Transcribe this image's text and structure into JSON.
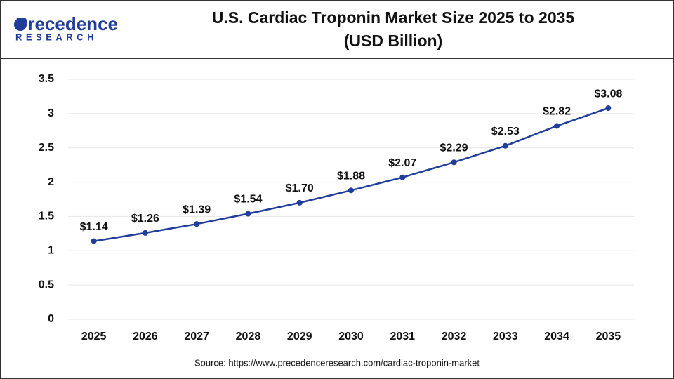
{
  "logo": {
    "name": "Precedence",
    "tagline": "RESEARCH"
  },
  "chart_data": {
    "type": "line",
    "title": "U.S. Cardiac Troponin Market Size 2025 to 2035",
    "subtitle": "(USD Billion)",
    "categories": [
      "2025",
      "2026",
      "2027",
      "2028",
      "2029",
      "2030",
      "2031",
      "2032",
      "2033",
      "2034",
      "2035"
    ],
    "series": [
      {
        "name": "U.S. Cardiac Troponin Market Size",
        "color": "#1f3d99",
        "values": [
          1.14,
          1.26,
          1.39,
          1.54,
          1.7,
          1.88,
          2.07,
          2.29,
          2.53,
          2.82,
          3.08
        ],
        "value_labels": [
          "$1.14",
          "$1.26",
          "$1.39",
          "$1.54",
          "$1.70",
          "$1.88",
          "$2.07",
          "$2.29",
          "$2.53",
          "$2.82",
          "$3.08"
        ]
      }
    ],
    "ylim": [
      0,
      3.5
    ],
    "yticks": [
      0,
      0.5,
      1,
      1.5,
      2,
      2.5,
      3,
      3.5
    ],
    "grid": true,
    "source": "Source: https://www.precedenceresearch.com/cardiac-troponin-market"
  }
}
